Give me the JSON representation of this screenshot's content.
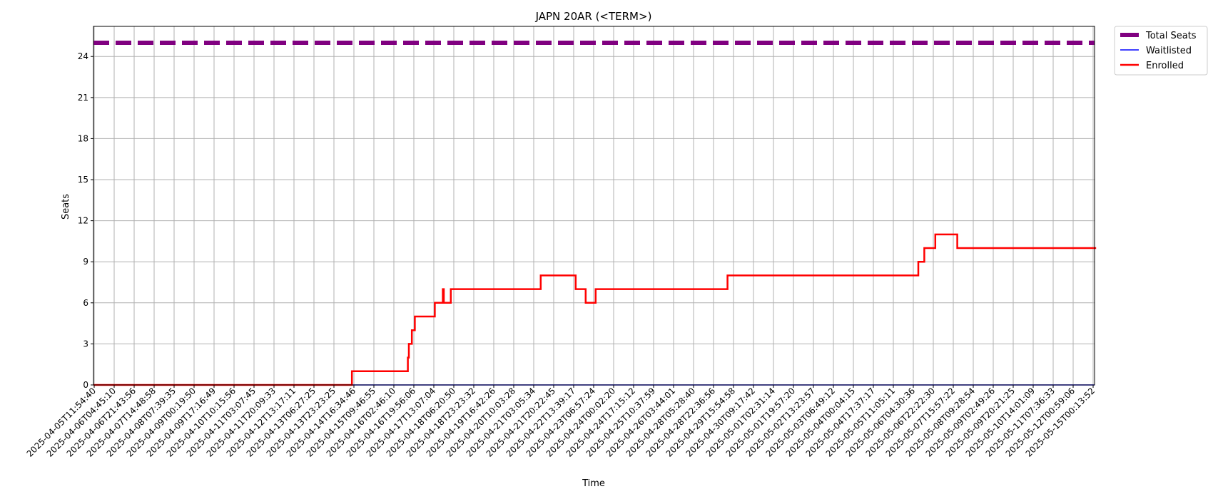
{
  "chart_data": {
    "type": "line",
    "title": "JAPN 20AR (<TERM>)",
    "xlabel": "Time",
    "ylabel": "Seats",
    "ylim": [
      0,
      26.2
    ],
    "yticks": [
      0,
      3,
      6,
      9,
      12,
      15,
      18,
      21,
      24
    ],
    "grid": true,
    "legend_position": "outside-top-right",
    "categories": [
      "2025-04-05T11:54:40",
      "2025-04-06T04:45:10",
      "2025-04-06T21:43:56",
      "2025-04-07T14:48:58",
      "2025-04-08T07:39:35",
      "2025-04-09T00:19:50",
      "2025-04-09T17:16:49",
      "2025-04-10T10:15:56",
      "2025-04-11T03:07:45",
      "2025-04-11T20:09:33",
      "2025-04-12T13:17:11",
      "2025-04-13T06:27:25",
      "2025-04-13T23:23:25",
      "2025-04-14T16:34:46",
      "2025-04-15T09:46:55",
      "2025-04-16T02:46:10",
      "2025-04-16T19:56:06",
      "2025-04-17T13:07:04",
      "2025-04-18T06:20:50",
      "2025-04-18T23:23:32",
      "2025-04-19T16:42:26",
      "2025-04-20T10:03:28",
      "2025-04-21T03:05:34",
      "2025-04-21T20:22:45",
      "2025-04-22T13:39:17",
      "2025-04-23T06:57:24",
      "2025-04-24T00:02:20",
      "2025-04-24T17:15:12",
      "2025-04-25T10:37:59",
      "2025-04-26T03:44:01",
      "2025-04-28T05:28:40",
      "2025-04-28T22:36:56",
      "2025-04-29T15:54:58",
      "2025-04-30T09:17:42",
      "2025-05-01T02:31:14",
      "2025-05-01T19:57:20",
      "2025-05-02T13:23:57",
      "2025-05-03T06:49:12",
      "2025-05-04T00:04:15",
      "2025-05-04T17:37:17",
      "2025-05-05T11:05:11",
      "2025-05-06T04:30:36",
      "2025-05-06T22:22:30",
      "2025-05-07T15:57:22",
      "2025-05-08T09:28:54",
      "2025-05-09T02:49:26",
      "2025-05-09T20:21:25",
      "2025-05-10T14:01:09",
      "2025-05-11T07:36:33",
      "2025-05-12T00:59:06",
      "2025-05-15T00:13:52"
    ],
    "x_range": [
      0,
      50.15
    ],
    "series": [
      {
        "name": "Total Seats",
        "color": "#800080",
        "style": "dashed",
        "points": [
          [
            0,
            25
          ],
          [
            50.15,
            25
          ]
        ]
      },
      {
        "name": "Waitlisted",
        "color": "#0000ff",
        "style": "solid",
        "points": [
          [
            0,
            0
          ],
          [
            50.15,
            0
          ]
        ]
      },
      {
        "name": "Enrolled",
        "color": "#ff0000",
        "style": "step",
        "points": [
          [
            0,
            0
          ],
          [
            12.9,
            1
          ],
          [
            15.7,
            2
          ],
          [
            15.75,
            3
          ],
          [
            15.9,
            4
          ],
          [
            16.05,
            5
          ],
          [
            17.05,
            6
          ],
          [
            17.45,
            7
          ],
          [
            17.5,
            6
          ],
          [
            17.85,
            7
          ],
          [
            22.35,
            8
          ],
          [
            24.1,
            7
          ],
          [
            24.6,
            6
          ],
          [
            25.1,
            7
          ],
          [
            31.7,
            8
          ],
          [
            41.25,
            9
          ],
          [
            41.55,
            10
          ],
          [
            42.1,
            11
          ],
          [
            43.2,
            10
          ],
          [
            50.15,
            10
          ]
        ]
      }
    ]
  }
}
